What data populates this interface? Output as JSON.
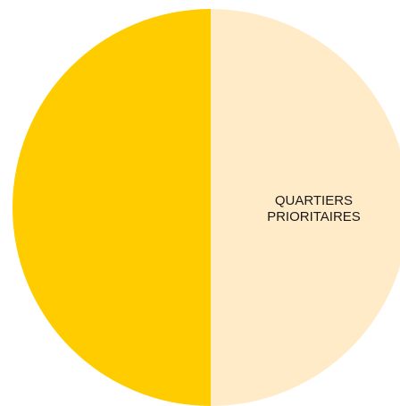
{
  "chart_data": {
    "type": "pie",
    "slices": [
      {
        "label": "QUARTIERS PRIORITAIRES",
        "label_lines": [
          "QUARTIERS",
          "PRIORITAIRES"
        ],
        "value": 50,
        "color": "#FFEBC8"
      },
      {
        "label": "",
        "label_lines": [],
        "value": 50,
        "color": "#FFCC00"
      }
    ],
    "legend": "none",
    "title": ""
  }
}
